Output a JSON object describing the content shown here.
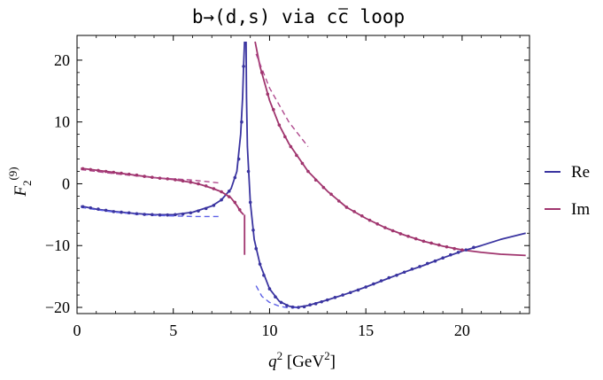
{
  "chart_data": {
    "type": "line",
    "title": "b→(d,s) via c̅c̅ loop",
    "title_parts": {
      "pre": "b→(d,s) via c",
      "overline": "c",
      "post": " loop"
    },
    "xlabel": {
      "var": "q",
      "sup": "2",
      "unit_pre": " [GeV",
      "unit_sup": "2",
      "unit_post": "]"
    },
    "ylabel": {
      "var": "F",
      "sub": "2",
      "sup": "(9)"
    },
    "xlim": [
      0,
      23.5
    ],
    "ylim": [
      -21,
      24
    ],
    "x_ticks": [
      0,
      5,
      10,
      15,
      20
    ],
    "y_ticks": [
      -20,
      -10,
      0,
      10,
      20
    ],
    "x_tick_labels": [
      "0",
      "5",
      "10",
      "15",
      "20"
    ],
    "y_tick_labels": [
      "−20",
      "−10",
      "0",
      "10",
      "20"
    ],
    "legend_position": "right",
    "colors": {
      "Re": "#3a34a0",
      "Im": "#a0356e",
      "Re_dashed": "#5d60e6",
      "Im_dashed": "#b04a8e"
    },
    "series": [
      {
        "name": "Re",
        "style": "solid",
        "segments": [
          [
            [
              0.2,
              -3.6
            ],
            [
              1.0,
              -4.1
            ],
            [
              2.0,
              -4.5
            ],
            [
              3.0,
              -4.8
            ],
            [
              4.0,
              -5.0
            ],
            [
              5.0,
              -5.0
            ],
            [
              6.0,
              -4.6
            ],
            [
              7.0,
              -3.6
            ],
            [
              7.5,
              -2.6
            ],
            [
              8.0,
              -0.8
            ],
            [
              8.3,
              2.0
            ],
            [
              8.5,
              8.0
            ],
            [
              8.6,
              14.0
            ],
            [
              8.65,
              19.0
            ],
            [
              8.7,
              23.0
            ]
          ],
          [
            [
              8.78,
              23.0
            ],
            [
              8.8,
              14.0
            ],
            [
              8.85,
              6.0
            ],
            [
              9.0,
              -3.0
            ],
            [
              9.2,
              -9.0
            ],
            [
              9.5,
              -13.0
            ],
            [
              10.0,
              -17.0
            ],
            [
              10.5,
              -19.0
            ],
            [
              11.0,
              -19.8
            ],
            [
              11.4,
              -20.0
            ],
            [
              12.0,
              -19.7
            ],
            [
              13.0,
              -18.8
            ],
            [
              14.0,
              -17.8
            ],
            [
              15.0,
              -16.7
            ],
            [
              16.0,
              -15.5
            ],
            [
              17.0,
              -14.3
            ],
            [
              18.0,
              -13.2
            ],
            [
              19.0,
              -12.0
            ],
            [
              20.0,
              -10.9
            ],
            [
              21.0,
              -10.0
            ],
            [
              22.0,
              -9.0
            ],
            [
              23.3,
              -8.0
            ]
          ]
        ]
      },
      {
        "name": "Im",
        "style": "solid",
        "segments": [
          [
            [
              0.2,
              2.5
            ],
            [
              1.0,
              2.2
            ],
            [
              2.0,
              1.8
            ],
            [
              3.0,
              1.4
            ],
            [
              4.0,
              1.0
            ],
            [
              5.0,
              0.7
            ],
            [
              6.0,
              0.2
            ],
            [
              6.5,
              -0.2
            ],
            [
              7.0,
              -0.7
            ],
            [
              7.5,
              -1.3
            ],
            [
              8.0,
              -2.3
            ],
            [
              8.3,
              -3.5
            ],
            [
              8.5,
              -4.5
            ],
            [
              8.65,
              -5.0
            ]
          ],
          [
            [
              8.7,
              -5.0
            ],
            [
              8.7,
              -11.5
            ]
          ],
          [
            [
              9.25,
              23.0
            ],
            [
              9.5,
              19.0
            ],
            [
              10.0,
              13.5
            ],
            [
              10.5,
              9.5
            ],
            [
              11.0,
              6.5
            ],
            [
              12.0,
              2.0
            ],
            [
              13.0,
              -1.2
            ],
            [
              14.0,
              -3.8
            ],
            [
              15.0,
              -5.6
            ],
            [
              16.0,
              -7.1
            ],
            [
              17.0,
              -8.3
            ],
            [
              18.0,
              -9.3
            ],
            [
              19.0,
              -10.1
            ],
            [
              20.0,
              -10.7
            ],
            [
              21.0,
              -11.1
            ],
            [
              22.0,
              -11.4
            ],
            [
              23.3,
              -11.6
            ]
          ]
        ]
      },
      {
        "name": "Re-dashed",
        "style": "dashed",
        "segments": [
          [
            [
              0.2,
              -3.8
            ],
            [
              1.0,
              -4.2
            ],
            [
              2.0,
              -4.6
            ],
            [
              3.0,
              -4.9
            ],
            [
              4.0,
              -5.1
            ],
            [
              5.0,
              -5.2
            ],
            [
              6.0,
              -5.3
            ],
            [
              7.5,
              -5.3
            ]
          ],
          [
            [
              9.3,
              -16.5
            ],
            [
              9.6,
              -18.2
            ],
            [
              10.0,
              -19.2
            ],
            [
              10.5,
              -19.8
            ],
            [
              11.0,
              -20.1
            ],
            [
              11.5,
              -20.0
            ]
          ]
        ]
      },
      {
        "name": "Im-dashed",
        "style": "dashed",
        "segments": [
          [
            [
              0.2,
              2.3
            ],
            [
              2.0,
              1.6
            ],
            [
              4.0,
              1.0
            ],
            [
              6.0,
              0.6
            ],
            [
              7.5,
              0.1
            ]
          ],
          [
            [
              9.3,
              21.0
            ],
            [
              10.0,
              15.5
            ],
            [
              11.0,
              10.0
            ],
            [
              12.0,
              6.0
            ]
          ]
        ]
      },
      {
        "name": "Re-points",
        "style": "points",
        "points": [
          [
            0.3,
            -3.7
          ],
          [
            0.7,
            -3.9
          ],
          [
            1.1,
            -4.1
          ],
          [
            1.5,
            -4.3
          ],
          [
            1.9,
            -4.5
          ],
          [
            2.3,
            -4.6
          ],
          [
            2.7,
            -4.7
          ],
          [
            3.1,
            -4.85
          ],
          [
            3.5,
            -4.95
          ],
          [
            3.9,
            -5.0
          ],
          [
            4.3,
            -5.05
          ],
          [
            4.7,
            -5.05
          ],
          [
            5.1,
            -5.0
          ],
          [
            5.5,
            -4.9
          ],
          [
            5.9,
            -4.7
          ],
          [
            6.3,
            -4.4
          ],
          [
            6.7,
            -4.0
          ],
          [
            7.1,
            -3.5
          ],
          [
            7.5,
            -2.6
          ],
          [
            7.9,
            -1.2
          ],
          [
            8.2,
            1.0
          ],
          [
            8.4,
            4.0
          ],
          [
            8.55,
            10.0
          ],
          [
            8.65,
            19.0
          ],
          [
            8.9,
            2.0
          ],
          [
            9.0,
            -3.0
          ],
          [
            9.15,
            -7.5
          ],
          [
            9.3,
            -10.5
          ],
          [
            9.5,
            -13.0
          ],
          [
            9.7,
            -14.8
          ],
          [
            10.0,
            -17.0
          ],
          [
            10.3,
            -18.3
          ],
          [
            10.6,
            -19.2
          ],
          [
            10.9,
            -19.7
          ],
          [
            11.2,
            -19.95
          ],
          [
            11.5,
            -20.0
          ],
          [
            11.8,
            -19.9
          ],
          [
            12.1,
            -19.6
          ],
          [
            12.4,
            -19.4
          ],
          [
            12.7,
            -19.1
          ],
          [
            13.0,
            -18.8
          ],
          [
            13.4,
            -18.4
          ],
          [
            13.8,
            -18.0
          ],
          [
            14.2,
            -17.6
          ],
          [
            14.6,
            -17.2
          ],
          [
            15.0,
            -16.7
          ],
          [
            15.4,
            -16.2
          ],
          [
            15.8,
            -15.7
          ],
          [
            16.2,
            -15.2
          ],
          [
            16.6,
            -14.8
          ],
          [
            17.0,
            -14.3
          ],
          [
            17.4,
            -13.8
          ],
          [
            17.8,
            -13.4
          ],
          [
            18.2,
            -12.9
          ],
          [
            18.6,
            -12.5
          ],
          [
            19.0,
            -12.0
          ],
          [
            19.4,
            -11.5
          ],
          [
            19.8,
            -11.1
          ],
          [
            20.2,
            -10.7
          ],
          [
            20.6,
            -10.3
          ]
        ]
      },
      {
        "name": "Im-points",
        "style": "points",
        "points": [
          [
            0.3,
            2.45
          ],
          [
            0.7,
            2.3
          ],
          [
            1.1,
            2.15
          ],
          [
            1.5,
            2.0
          ],
          [
            1.9,
            1.85
          ],
          [
            2.3,
            1.7
          ],
          [
            2.7,
            1.55
          ],
          [
            3.1,
            1.4
          ],
          [
            3.5,
            1.2
          ],
          [
            3.9,
            1.05
          ],
          [
            4.3,
            0.9
          ],
          [
            4.7,
            0.8
          ],
          [
            5.1,
            0.65
          ],
          [
            5.5,
            0.45
          ],
          [
            5.9,
            0.25
          ],
          [
            6.3,
            0.0
          ],
          [
            6.7,
            -0.35
          ],
          [
            7.1,
            -0.8
          ],
          [
            7.5,
            -1.3
          ],
          [
            7.9,
            -2.1
          ],
          [
            8.2,
            -3.0
          ],
          [
            8.45,
            -4.2
          ],
          [
            9.6,
            18.0
          ],
          [
            9.9,
            14.5
          ],
          [
            10.2,
            12.0
          ],
          [
            10.5,
            9.5
          ],
          [
            10.8,
            7.6
          ],
          [
            11.1,
            6.0
          ],
          [
            11.4,
            4.6
          ],
          [
            11.7,
            3.3
          ],
          [
            12.0,
            2.0
          ],
          [
            12.4,
            0.6
          ],
          [
            12.8,
            -0.6
          ],
          [
            13.2,
            -1.7
          ],
          [
            13.6,
            -2.8
          ],
          [
            14.0,
            -3.8
          ],
          [
            14.4,
            -4.5
          ],
          [
            14.8,
            -5.2
          ],
          [
            15.2,
            -5.9
          ],
          [
            15.6,
            -6.5
          ],
          [
            16.0,
            -7.1
          ],
          [
            16.4,
            -7.6
          ],
          [
            16.8,
            -8.1
          ],
          [
            17.2,
            -8.5
          ],
          [
            17.6,
            -8.9
          ],
          [
            18.0,
            -9.3
          ],
          [
            18.4,
            -9.6
          ],
          [
            18.8,
            -9.9
          ],
          [
            19.2,
            -10.2
          ],
          [
            19.6,
            -10.5
          ],
          [
            20.0,
            -10.7
          ]
        ]
      }
    ],
    "legend": [
      {
        "label": "Re",
        "color": "#3a34a0"
      },
      {
        "label": "Im",
        "color": "#a0356e"
      }
    ]
  }
}
